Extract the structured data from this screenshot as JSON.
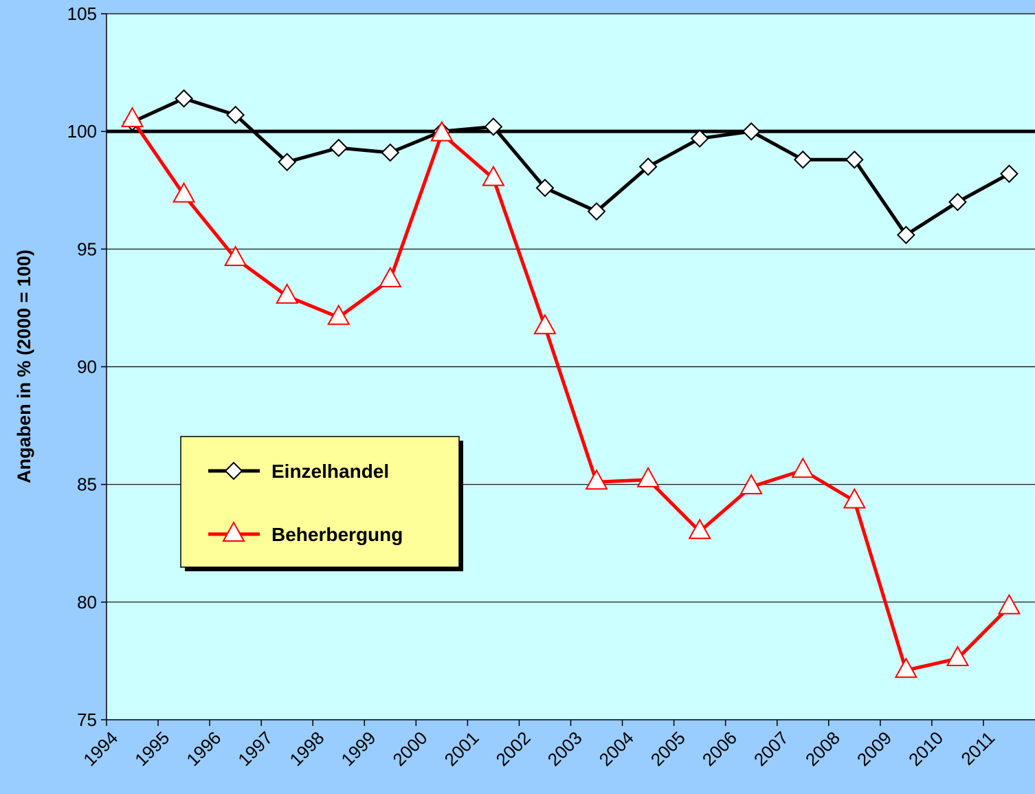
{
  "chart_data": {
    "type": "line",
    "y_label": "Angaben in % (2000 = 100)",
    "categories": [
      "1994",
      "1995",
      "1996",
      "1997",
      "1998",
      "1999",
      "2000",
      "2001",
      "2002",
      "2003",
      "2004",
      "2005",
      "2006",
      "2007",
      "2008",
      "2009",
      "2010",
      "2011"
    ],
    "series": [
      {
        "name": "Einzelhandel",
        "color": "#000000",
        "marker": "diamond",
        "values": [
          100.4,
          101.4,
          100.7,
          98.7,
          99.3,
          99.1,
          100,
          100.2,
          97.6,
          96.6,
          98.5,
          99.7,
          100,
          98.8,
          98.8,
          95.6,
          97.0,
          98.2
        ]
      },
      {
        "name": "Beherbergung",
        "color": "#ff0000",
        "marker": "triangle",
        "values": [
          100.5,
          97.3,
          94.6,
          93.0,
          92.1,
          93.7,
          99.9,
          98.0,
          91.7,
          85.1,
          85.2,
          83.0,
          84.9,
          85.6,
          84.3,
          77.1,
          77.6,
          79.8
        ]
      }
    ],
    "ylim": [
      75,
      105
    ],
    "yticks": [
      75,
      80,
      85,
      90,
      95,
      100,
      105
    ],
    "reference_line": 100,
    "grid": true,
    "legend": "lower left"
  }
}
